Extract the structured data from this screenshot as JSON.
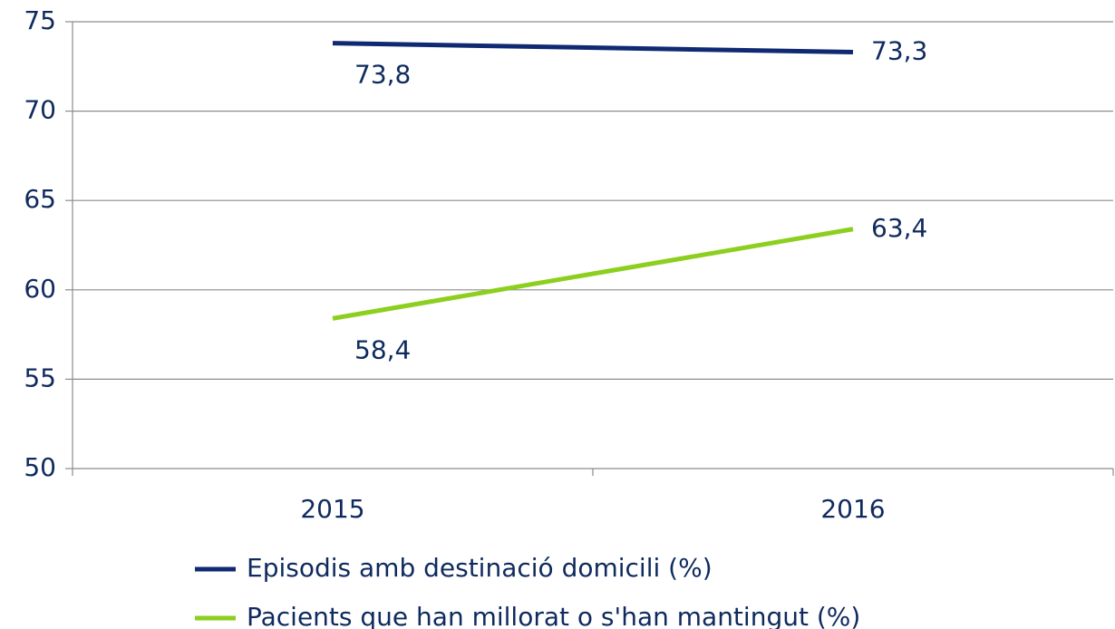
{
  "chart_data": {
    "type": "line",
    "categories": [
      "2015",
      "2016"
    ],
    "series": [
      {
        "name": "Episodis amb destinació domicili (%)",
        "color": "#0f2a73",
        "values": [
          73.8,
          73.3
        ],
        "value_labels": [
          "73,8",
          "73,3"
        ]
      },
      {
        "name": "Pacients que han millorat o s'han mantingut (%)",
        "color": "#8ccf1e",
        "values": [
          58.4,
          63.4
        ],
        "value_labels": [
          "58,4",
          "63,4"
        ]
      }
    ],
    "ylim": [
      50,
      75
    ],
    "yticks": [
      50,
      55,
      60,
      65,
      70,
      75
    ],
    "grid": true,
    "legend": "bottom"
  }
}
